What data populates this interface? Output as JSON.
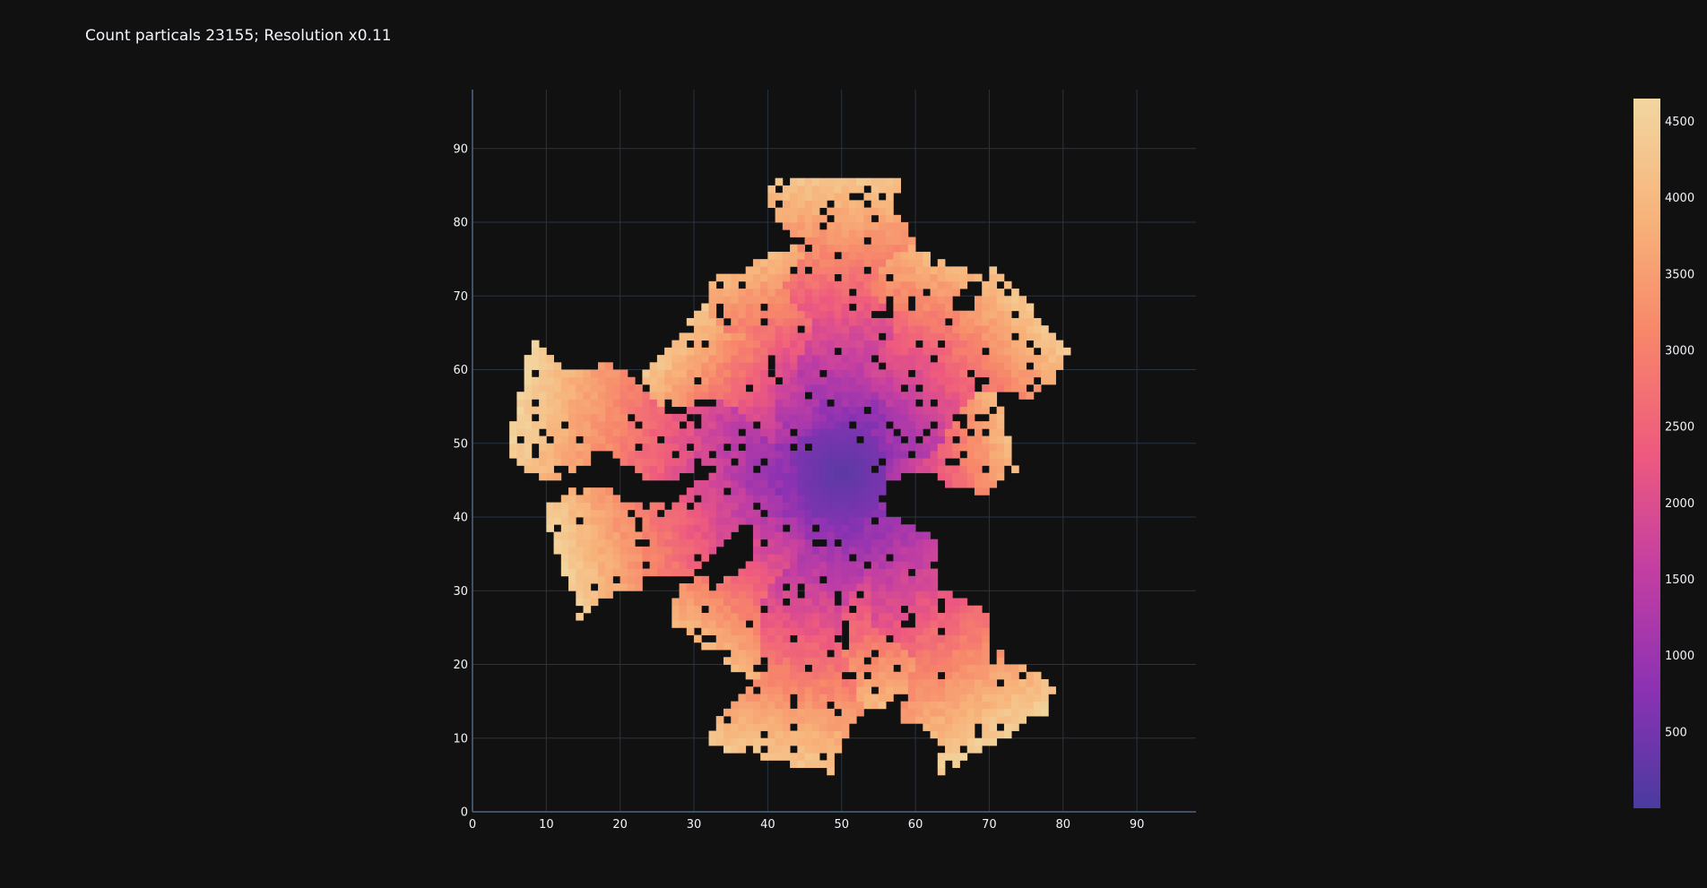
{
  "chart_data": {
    "type": "heatmap",
    "title": "Count particals 23155; Resolution x0.11",
    "xlabel": "",
    "ylabel": "",
    "xlim": [
      0,
      98
    ],
    "ylim": [
      0,
      98
    ],
    "x_ticks": [
      0,
      10,
      20,
      30,
      40,
      50,
      60,
      70,
      80,
      90
    ],
    "y_ticks": [
      0,
      10,
      20,
      30,
      40,
      50,
      60,
      70,
      80,
      90
    ],
    "grid": true,
    "colorscale": [
      "#4a3ba0",
      "#8d32b3",
      "#c43fa2",
      "#ee5a7e",
      "#f7876a",
      "#f7b37a",
      "#f2d6a0"
    ],
    "colorbar": {
      "range": [
        0,
        4650
      ],
      "ticks": [
        500,
        1000,
        1500,
        2000,
        2500,
        3000,
        3500,
        4000,
        4500
      ]
    },
    "center": [
      50,
      46
    ],
    "arms": [
      {
        "angle": 90,
        "length": 40,
        "width": 4.5,
        "tip": 4300
      },
      {
        "angle": 68,
        "length": 32,
        "width": 3.5,
        "tip": 4000
      },
      {
        "angle": 40,
        "length": 34,
        "width": 4.0,
        "tip": 4300
      },
      {
        "angle": 14,
        "length": 23,
        "width": 3.5,
        "tip": 4100
      },
      {
        "angle": 112,
        "length": 31,
        "width": 3.5,
        "tip": 4000
      },
      {
        "angle": 140,
        "length": 29,
        "width": 4.0,
        "tip": 4300
      },
      {
        "angle": 168,
        "length": 45,
        "width": 4.0,
        "tip": 4600
      },
      {
        "angle": 198,
        "length": 40,
        "width": 4.0,
        "tip": 4500
      },
      {
        "angle": 234,
        "length": 30,
        "width": 3.5,
        "tip": 4000
      },
      {
        "angle": 258,
        "length": 40,
        "width": 4.5,
        "tip": 4300
      },
      {
        "angle": 300,
        "length": 42,
        "width": 4.5,
        "tip": 4500
      },
      {
        "angle": 282,
        "length": 32,
        "width": 3.5,
        "tip": 4000
      }
    ]
  }
}
